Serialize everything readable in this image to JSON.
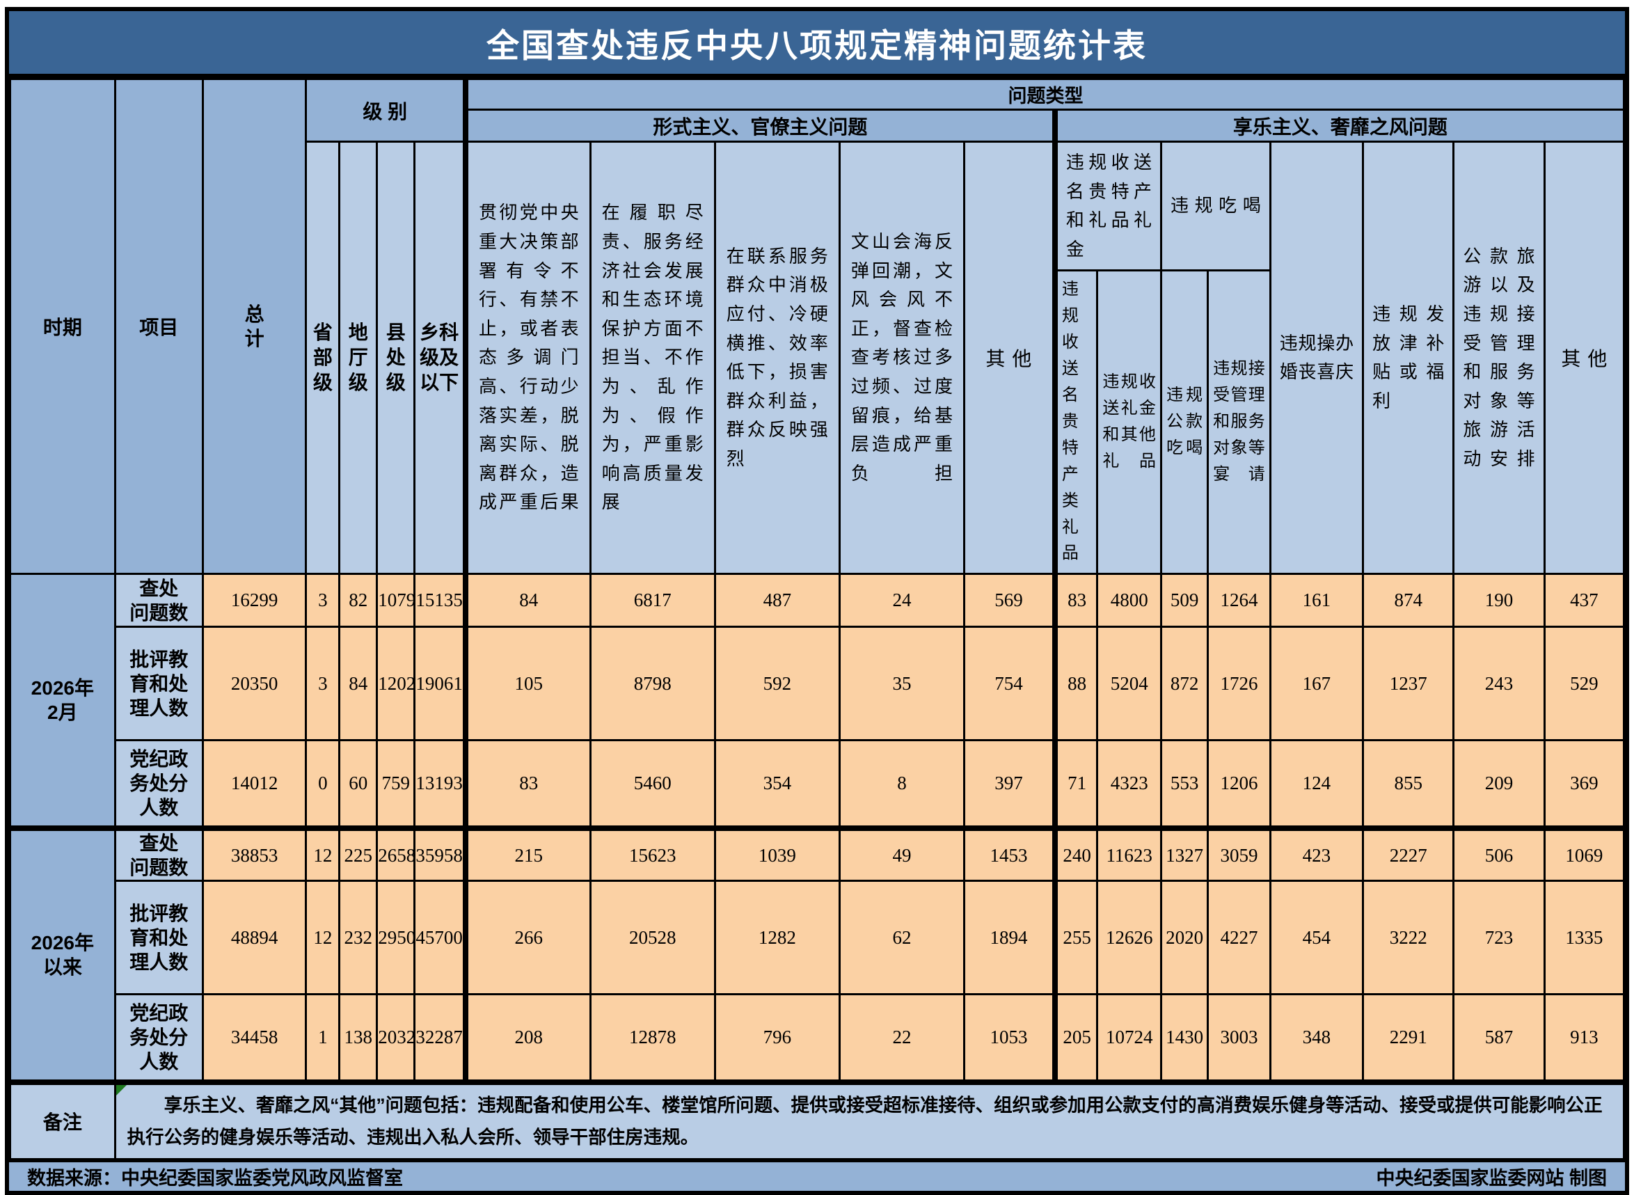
{
  "title": "全国查处违反中央八项规定精神问题统计表",
  "header": {
    "period": "时期",
    "item": "项目",
    "total": "总\n计",
    "level_group": "级 别",
    "levels": [
      "省部级",
      "地厅级",
      "县处级",
      "乡科级及以下"
    ],
    "problem_type_group": "问题类型",
    "formalism_group": "形式主义、官僚主义问题",
    "formalism_cols": [
      "贯彻党中央重大决策部署有令不行、有禁不止，或者表态多调门高、行动少落实差，脱离实际、脱离群众，造成严重后果",
      "在履职尽责、服务经济社会发展和生态环境保护方面不担当、不作为、乱作为、假作为，严重影响高质量发展",
      "在联系服务群众中消极应付、冷硬横推、效率低下，损害群众利益，群众反映强烈",
      "文山会海反弹回潮，文风会风不正，督查检查考核过多过频、过度留痕，给基层造成严重负担",
      "其他"
    ],
    "hedonism_group": "享乐主义、奢靡之风问题",
    "gifts_group": "违规收送名贵特产和礼品礼金",
    "gifts_cols": [
      "违规收送名贵特产类礼品",
      "违规收送礼金和其他礼品"
    ],
    "eat_group": "违规吃喝",
    "eat_cols": [
      "违规公款吃喝",
      "违规接受管理和服务对象等宴请"
    ],
    "tail_cols": [
      "违规操办婚丧喜庆",
      "违规发放津补贴或福利",
      "公款旅游以及违规接受管理和服务对象等旅游活动安排",
      "其他"
    ]
  },
  "groups": [
    {
      "period": "2026年\n2月"
    },
    {
      "period": "2026年\n以来"
    }
  ],
  "rows": [
    {
      "label": "查处\n问题数",
      "values": [
        16299,
        3,
        82,
        1079,
        15135,
        84,
        6817,
        487,
        24,
        569,
        83,
        4800,
        509,
        1264,
        161,
        874,
        190,
        437
      ]
    },
    {
      "label": "批评教\n育和处\n理人数",
      "values": [
        20350,
        3,
        84,
        1202,
        19061,
        105,
        8798,
        592,
        35,
        754,
        88,
        5204,
        872,
        1726,
        167,
        1237,
        243,
        529
      ]
    },
    {
      "label": "党纪政\n务处分\n人数",
      "values": [
        14012,
        0,
        60,
        759,
        13193,
        83,
        5460,
        354,
        8,
        397,
        71,
        4323,
        553,
        1206,
        124,
        855,
        209,
        369
      ]
    },
    {
      "label": "查处\n问题数",
      "values": [
        38853,
        12,
        225,
        2658,
        35958,
        215,
        15623,
        1039,
        49,
        1453,
        240,
        11623,
        1327,
        3059,
        423,
        2227,
        506,
        1069
      ]
    },
    {
      "label": "批评教\n育和处\n理人数",
      "values": [
        48894,
        12,
        232,
        2950,
        45700,
        266,
        20528,
        1282,
        62,
        1894,
        255,
        12626,
        2020,
        4227,
        454,
        3222,
        723,
        1335
      ]
    },
    {
      "label": "党纪政\n务处分\n人数",
      "values": [
        34458,
        1,
        138,
        2032,
        32287,
        208,
        12878,
        796,
        22,
        1053,
        205,
        10724,
        1430,
        3003,
        348,
        2291,
        587,
        913
      ]
    }
  ],
  "remark": {
    "label": "备注",
    "text": "享乐主义、奢靡之风“其他”问题包括：违规配备和使用公车、楼堂馆所问题、提供或接受超标准接待、组织或参加用公款支付的高消费娱乐健身等活动、接受或提供可能影响公正执行公务的健身娱乐等活动、违规出入私人会所、领导干部住房违规。"
  },
  "footer": {
    "left": "数据来源：中央纪委国家监委党风政风监督室",
    "right": "中央纪委国家监委网站 制图"
  },
  "colors": {
    "title_bar": "#3A6595",
    "header_dark_blue": "#94B2D6",
    "header_light_blue": "#B9CDE5",
    "data_cell_peach": "#FBD1A4",
    "border": "#000000",
    "title_text": "#FFFFFF",
    "remark_marker_green": "#1F7A1F"
  },
  "chart_data": {
    "type": "table",
    "title": "全国查处违反中央八项规定精神问题统计表",
    "columns": [
      "时期",
      "项目",
      "总计",
      "省部级",
      "地厅级",
      "县处级",
      "乡科级及以下",
      "贯彻党中央重大决策部署有令不行、有禁不止，或者表态多调门高、行动少落实差，脱离实际、脱离群众，造成严重后果",
      "在履职尽责、服务经济社会发展和生态环境保护方面不担当、不作为、乱作为、假作为，严重影响高质量发展",
      "在联系服务群众中消极应付、冷硬横推、效率低下，损害群众利益，群众反映强烈",
      "文山会海反弹回潮，文风会风不正，督查检查考核过多过频、过度留痕，给基层造成严重负担",
      "形式主义、官僚主义问题-其他",
      "违规收送名贵特产类礼品",
      "违规收送礼金和其他礼品",
      "违规公款吃喝",
      "违规接受管理和服务对象等宴请",
      "违规操办婚丧喜庆",
      "违规发放津补贴或福利",
      "公款旅游以及违规接受管理和服务对象等旅游活动安排",
      "享乐主义、奢靡之风问题-其他"
    ],
    "rows": [
      [
        "2026年2月",
        "查处问题数",
        16299,
        3,
        82,
        1079,
        15135,
        84,
        6817,
        487,
        24,
        569,
        83,
        4800,
        509,
        1264,
        161,
        874,
        190,
        437
      ],
      [
        "2026年2月",
        "批评教育和处理人数",
        20350,
        3,
        84,
        1202,
        19061,
        105,
        8798,
        592,
        35,
        754,
        88,
        5204,
        872,
        1726,
        167,
        1237,
        243,
        529
      ],
      [
        "2026年2月",
        "党纪政务处分人数",
        14012,
        0,
        60,
        759,
        13193,
        83,
        5460,
        354,
        8,
        397,
        71,
        4323,
        553,
        1206,
        124,
        855,
        209,
        369
      ],
      [
        "2026年以来",
        "查处问题数",
        38853,
        12,
        225,
        2658,
        35958,
        215,
        15623,
        1039,
        49,
        1453,
        240,
        11623,
        1327,
        3059,
        423,
        2227,
        506,
        1069
      ],
      [
        "2026年以来",
        "批评教育和处理人数",
        48894,
        12,
        232,
        2950,
        45700,
        266,
        20528,
        1282,
        62,
        1894,
        255,
        12626,
        2020,
        4227,
        454,
        3222,
        723,
        1335
      ],
      [
        "2026年以来",
        "党纪政务处分人数",
        34458,
        1,
        138,
        2032,
        32287,
        208,
        12878,
        796,
        22,
        1053,
        205,
        10724,
        1430,
        3003,
        348,
        2291,
        587,
        913
      ]
    ]
  }
}
